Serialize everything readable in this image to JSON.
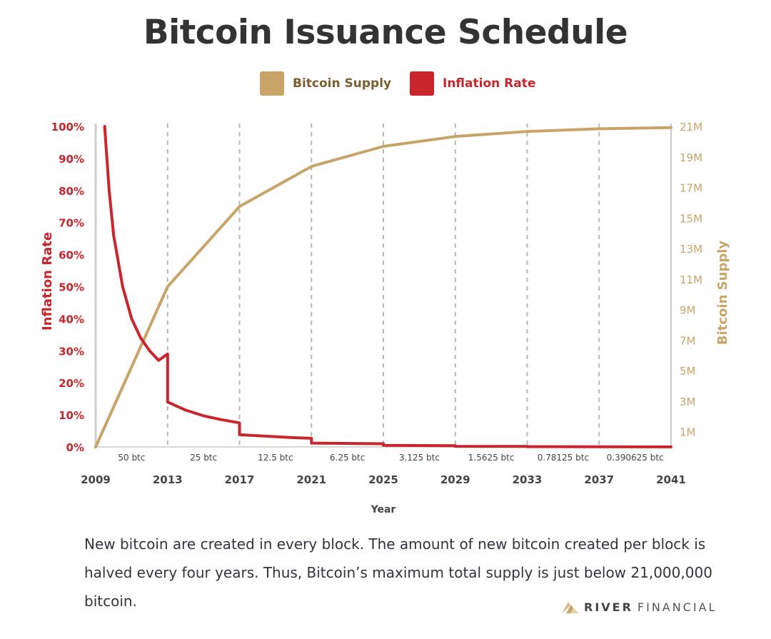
{
  "chart_data": {
    "type": "line",
    "title": "Bitcoin Issuance Schedule",
    "xlabel": "Year",
    "y_left_label": "Inflation Rate",
    "y_right_label": "Bitcoin Supply",
    "x_ticks": [
      "2009",
      "2013",
      "2017",
      "2021",
      "2025",
      "2029",
      "2033",
      "2037",
      "2041"
    ],
    "y_left_ticks": [
      "0%",
      "10%",
      "20%",
      "30%",
      "40%",
      "50%",
      "60%",
      "70%",
      "80%",
      "90%",
      "100%"
    ],
    "y_right_ticks": [
      "1M",
      "3M",
      "5M",
      "7M",
      "9M",
      "11M",
      "13M",
      "15M",
      "17M",
      "19M",
      "21M"
    ],
    "y_left_range": [
      0,
      100
    ],
    "y_right_range": [
      0,
      21
    ],
    "x_range": [
      2009,
      2041
    ],
    "grid": "vertical dashed lines at each halving",
    "legend_position": "top-center",
    "block_rewards": [
      "50 btc",
      "25 btc",
      "12.5 btc",
      "6.25 btc",
      "3.125 btc",
      "1.5625 btc",
      "0.78125 btc",
      "0.390625 btc"
    ],
    "series": [
      {
        "name": "Bitcoin Supply",
        "axis": "right",
        "unit": "million BTC",
        "color": "#c8a468",
        "points": [
          [
            2009,
            0
          ],
          [
            2013,
            10.5
          ],
          [
            2017,
            15.75
          ],
          [
            2021,
            18.375
          ],
          [
            2025,
            19.69
          ],
          [
            2029,
            20.34
          ],
          [
            2033,
            20.67
          ],
          [
            2037,
            20.84
          ],
          [
            2041,
            20.92
          ]
        ]
      },
      {
        "name": "Inflation Rate",
        "axis": "left",
        "unit": "percent",
        "color": "#c9252c",
        "points": [
          [
            2009.5,
            100
          ],
          [
            2009.75,
            80
          ],
          [
            2010,
            66
          ],
          [
            2010.5,
            50
          ],
          [
            2011,
            40
          ],
          [
            2011.5,
            34
          ],
          [
            2012,
            30
          ],
          [
            2012.5,
            27
          ],
          [
            2013,
            29
          ],
          [
            2013,
            14
          ],
          [
            2014,
            11.5
          ],
          [
            2015,
            9.7
          ],
          [
            2016,
            8.5
          ],
          [
            2017,
            7.5
          ],
          [
            2017,
            3.8
          ],
          [
            2018,
            3.5
          ],
          [
            2019,
            3.2
          ],
          [
            2020,
            2.9
          ],
          [
            2021,
            2.7
          ],
          [
            2021,
            1.2
          ],
          [
            2025,
            1.0
          ],
          [
            2025,
            0.5
          ],
          [
            2029,
            0.4
          ],
          [
            2029,
            0.2
          ],
          [
            2033,
            0.15
          ],
          [
            2033,
            0.08
          ],
          [
            2037,
            0.07
          ],
          [
            2037,
            0.04
          ],
          [
            2041,
            0.03
          ]
        ]
      }
    ]
  },
  "footer": {
    "text": "New bitcoin are created in every block. The amount of new bitcoin created per block is halved every four years.  Thus, Bitcoin’s maximum total supply is just below 21,000,000 bitcoin.",
    "logo_word1": "RIVER",
    "logo_word2": "FINANCIAL"
  },
  "colors": {
    "supply": "#c8a468",
    "inflation": "#c9252c",
    "axis_text": "#444444",
    "grid": "#b8b8b8"
  }
}
